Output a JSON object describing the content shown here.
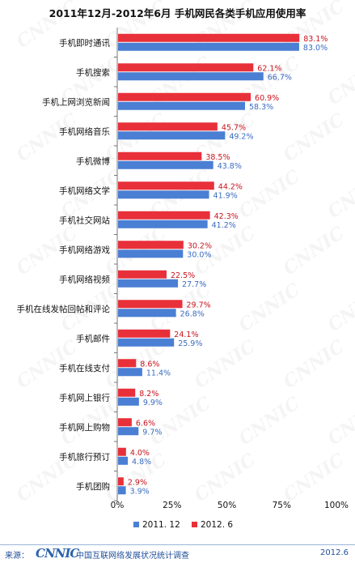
{
  "chart_data": {
    "type": "bar",
    "orientation": "horizontal",
    "title": "2011年12月-2012年6月 手机网民各类手机应用使用率",
    "categories": [
      "手机即时通讯",
      "手机搜索",
      "手机上网浏览新闻",
      "手机网络音乐",
      "手机微博",
      "手机网络文学",
      "手机社交网站",
      "手机网络游戏",
      "手机网络视频",
      "手机在线发帖回帖和评论",
      "手机邮件",
      "手机在线支付",
      "手机网上银行",
      "手机网上购物",
      "手机旅行预订",
      "手机团购"
    ],
    "series": [
      {
        "name": "2011. 12",
        "color": "#4a7fd4",
        "values": [
          83.0,
          66.7,
          58.3,
          49.2,
          43.8,
          41.9,
          41.2,
          30.0,
          27.7,
          26.8,
          25.9,
          11.4,
          9.9,
          9.7,
          4.8,
          3.9
        ],
        "labels": [
          "83.0%",
          "66.7%",
          "58.3%",
          "49.2%",
          "43.8%",
          "41.9%",
          "41.2%",
          "30.0%",
          "27.7%",
          "26.8%",
          "25.9%",
          "11.4%",
          "9.9%",
          "9.7%",
          "4.8%",
          "3.9%"
        ]
      },
      {
        "name": "2012. 6",
        "color": "#e8303a",
        "values": [
          83.1,
          62.1,
          60.9,
          45.7,
          38.5,
          44.2,
          42.3,
          30.2,
          22.5,
          29.7,
          24.1,
          8.6,
          8.2,
          6.6,
          4.0,
          2.9
        ],
        "labels": [
          "83.1%",
          "62.1%",
          "60.9%",
          "45.7%",
          "38.5%",
          "44.2%",
          "42.3%",
          "30.2%",
          "22.5%",
          "29.7%",
          "24.1%",
          "8.6%",
          "8.2%",
          "6.6%",
          "4.0%",
          "2.9%"
        ]
      }
    ],
    "xlim": [
      0,
      100
    ],
    "xticks": [
      "0%",
      "25%",
      "50%",
      "75%",
      "100%"
    ],
    "xtick_values": [
      0,
      25,
      50,
      75,
      100
    ],
    "legend_position": "bottom",
    "grid": false
  },
  "footer": {
    "source_label": "来源：",
    "logo_text": "CNNIC",
    "org_text": "中国互联网络发展状况统计调查",
    "date": "2012.6"
  }
}
